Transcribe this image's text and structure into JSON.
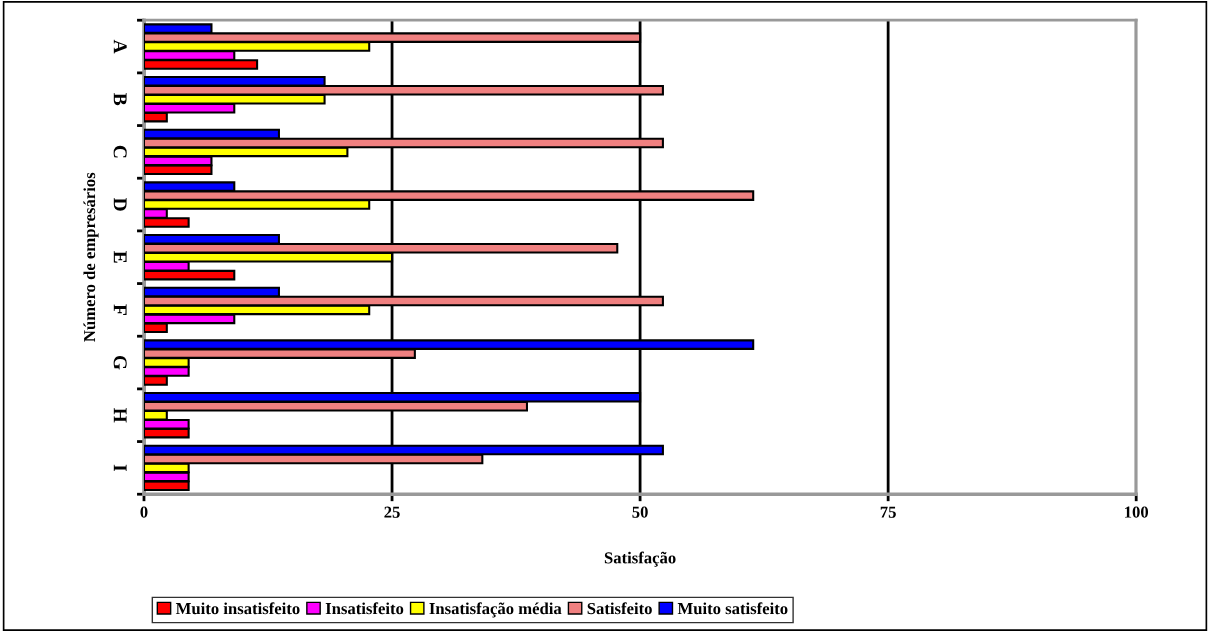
{
  "chart_data": {
    "type": "bar",
    "orientation": "horizontal",
    "xlabel": "Satisfação",
    "ylabel": "Número de empresários",
    "categories": [
      "A",
      "B",
      "C",
      "D",
      "E",
      "F",
      "G",
      "H",
      "I"
    ],
    "series": [
      {
        "name": "Muito insatisfeito",
        "color": "#ff0000",
        "values": [
          11.4,
          2.3,
          6.8,
          4.5,
          9.1,
          2.3,
          2.3,
          4.5,
          4.5
        ]
      },
      {
        "name": "Insatisfeito",
        "color": "#ff00ff",
        "values": [
          9.1,
          9.1,
          6.8,
          2.3,
          4.5,
          9.1,
          4.5,
          4.5,
          4.5
        ]
      },
      {
        "name": "Insatisfação média",
        "color": "#ffff00",
        "values": [
          22.7,
          18.2,
          20.5,
          22.7,
          25,
          22.7,
          4.5,
          2.3,
          4.5
        ]
      },
      {
        "name": "Satisfeito",
        "color": "#f08080",
        "values": [
          50,
          52.3,
          52.3,
          61.4,
          47.7,
          52.3,
          27.3,
          38.6,
          34.1
        ]
      },
      {
        "name": "Muito satisfeito",
        "color": "#0000ff",
        "values": [
          6.8,
          18.2,
          13.6,
          9.1,
          13.6,
          13.6,
          61.4,
          50,
          52.3
        ]
      }
    ],
    "xlim": [
      0,
      100
    ],
    "xticks": [
      0,
      25,
      50,
      75,
      100
    ],
    "grid": "x",
    "legend": "bottom"
  }
}
